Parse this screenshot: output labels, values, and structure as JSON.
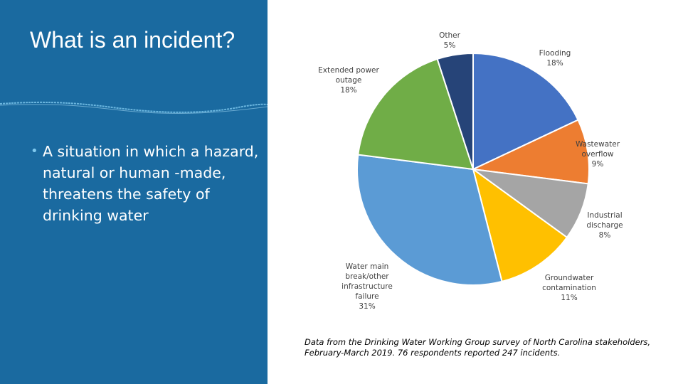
{
  "slide": {
    "title": "What is an incident?",
    "bullet": "A situation in which a hazard, natural or human -made, threatens the safety of drinking water",
    "source_note": "Data from the Drinking Water Working Group survey of North Carolina stakeholders, February-March 2019. 76 respondents reported 247 incidents.",
    "colors": {
      "panel": "#1a6aa0",
      "text": "#ffffff",
      "bullet": "#7ec8ee"
    }
  },
  "chart_data": {
    "type": "pie",
    "title": "",
    "start": "top",
    "direction": "clockwise",
    "slices": [
      {
        "label": [
          "Flooding",
          "18%"
        ],
        "value": 18,
        "color": "#4472c4"
      },
      {
        "label": [
          "Wastewater",
          "overflow",
          "9%"
        ],
        "value": 9,
        "color": "#ed7d31"
      },
      {
        "label": [
          "Industrial",
          "discharge",
          "8%"
        ],
        "value": 8,
        "color": "#a5a5a5"
      },
      {
        "label": [
          "Groundwater",
          "contamination",
          "11%"
        ],
        "value": 11,
        "color": "#ffc000"
      },
      {
        "label": [
          "Water main",
          "break/other",
          "infrastructure",
          "failure",
          "31%"
        ],
        "value": 31,
        "color": "#5b9bd5"
      },
      {
        "label": [
          "Extended power",
          "outage",
          "18%"
        ],
        "value": 18,
        "color": "#70ad47"
      },
      {
        "label": [
          "Other",
          "5%"
        ],
        "value": 5,
        "color": "#264478"
      }
    ]
  }
}
